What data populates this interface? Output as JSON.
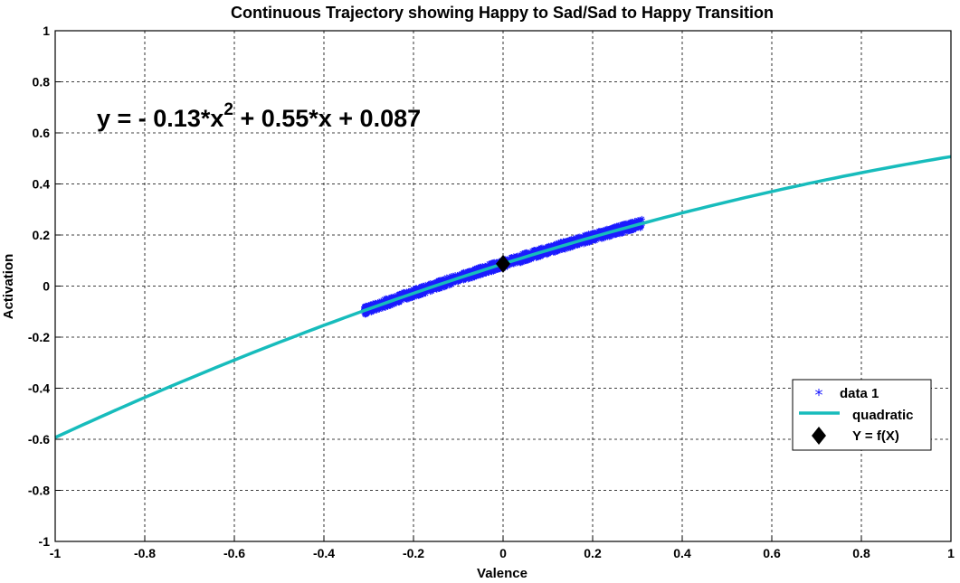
{
  "chart_data": {
    "type": "scatter",
    "title": "Continuous Trajectory showing Happy to Sad/Sad to Happy Transition",
    "xlabel": "Valence",
    "ylabel": "Activation",
    "xlim": [
      -1,
      1
    ],
    "ylim": [
      -1,
      1
    ],
    "xticks": [
      "-1",
      "-0.8",
      "-0.6",
      "-0.4",
      "-0.2",
      "0",
      "0.2",
      "0.4",
      "0.6",
      "0.8",
      "1"
    ],
    "yticks": [
      "1",
      "0.8",
      "0.6",
      "0.4",
      "0.2",
      "0",
      "-0.2",
      "-0.4",
      "-0.6",
      "-0.8",
      "-1"
    ],
    "grid": true,
    "legend_position": "bottom-right",
    "annotation": {
      "prefix": "y = - 0.13*x",
      "exponent": "2",
      "suffix": " + 0.55*x + 0.087"
    },
    "fit": {
      "a": -0.13,
      "b": 0.55,
      "c": 0.087,
      "x_range": [
        -1,
        1
      ]
    },
    "data_range": [
      -0.31,
      0.31
    ],
    "marker_point": {
      "x": 0,
      "y": 0.087
    },
    "series": [
      {
        "name": "data 1",
        "color": "#1a1aff",
        "marker": "asterisk"
      },
      {
        "name": "quadratic",
        "color": "#17bcbc",
        "style": "line"
      },
      {
        "name": "Y = f(X)",
        "color": "#000000",
        "marker": "diamond"
      }
    ]
  }
}
